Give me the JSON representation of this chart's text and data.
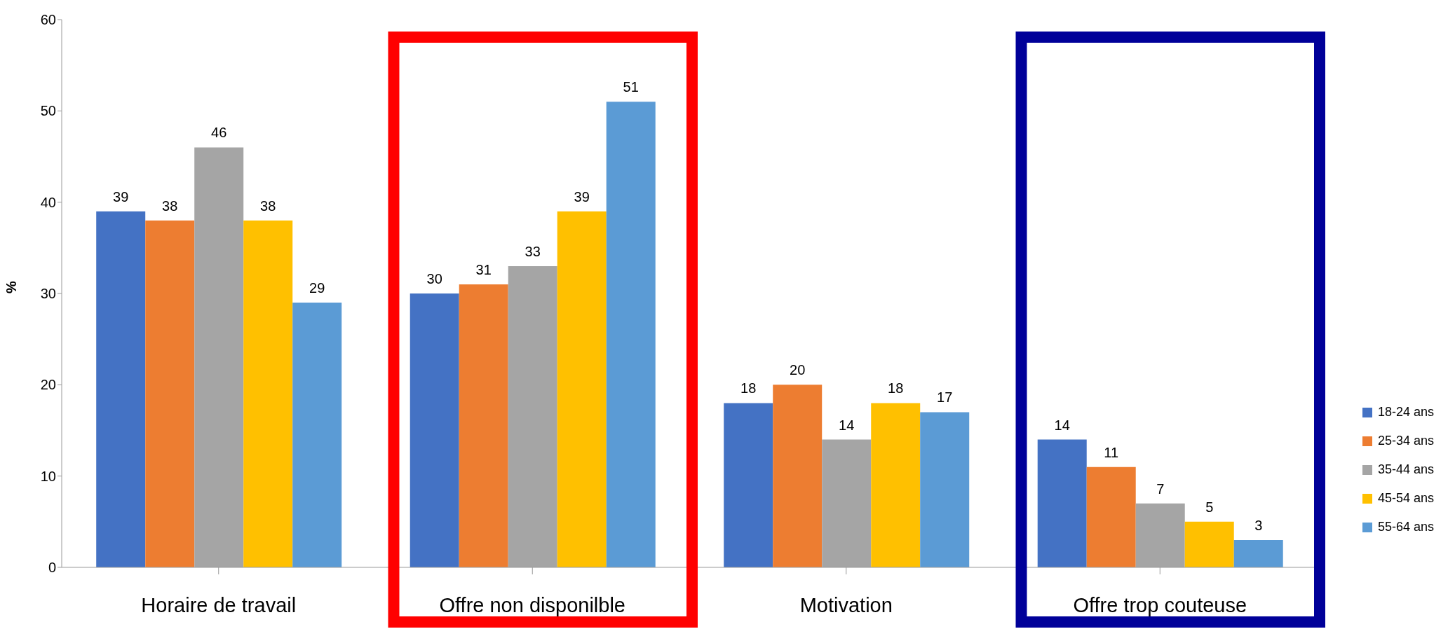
{
  "chart_data": {
    "type": "bar",
    "ylabel": "%",
    "categories": [
      "Horaire de travail",
      "Offre non disponilble",
      "Motivation",
      "Offre trop couteuse"
    ],
    "series": [
      {
        "name": "18-24 ans",
        "color": "#4472c4",
        "values": [
          39,
          30,
          18,
          14
        ]
      },
      {
        "name": "25-34 ans",
        "color": "#ed7d31",
        "values": [
          38,
          31,
          20,
          11
        ]
      },
      {
        "name": "35-44 ans",
        "color": "#a5a5a5",
        "values": [
          46,
          33,
          14,
          7
        ]
      },
      {
        "name": "45-54 ans",
        "color": "#ffc000",
        "values": [
          38,
          39,
          18,
          5
        ]
      },
      {
        "name": "55-64 ans",
        "color": "#5b9bd5",
        "values": [
          29,
          51,
          17,
          3
        ]
      }
    ],
    "bands": [
      {
        "axis": "x",
        "from": "Offre non disponilble",
        "to": "Offre non disponilble",
        "color": "#ff0000"
      },
      {
        "axis": "x",
        "from": "Offre trop couteuse",
        "to": "Offre trop couteuse",
        "color": "#000099"
      }
    ],
    "ylim": [
      0,
      60
    ],
    "yticks": [
      0,
      10,
      20,
      30,
      40,
      50,
      60
    ],
    "grid": false,
    "legend": "right",
    "data_labels": true
  }
}
